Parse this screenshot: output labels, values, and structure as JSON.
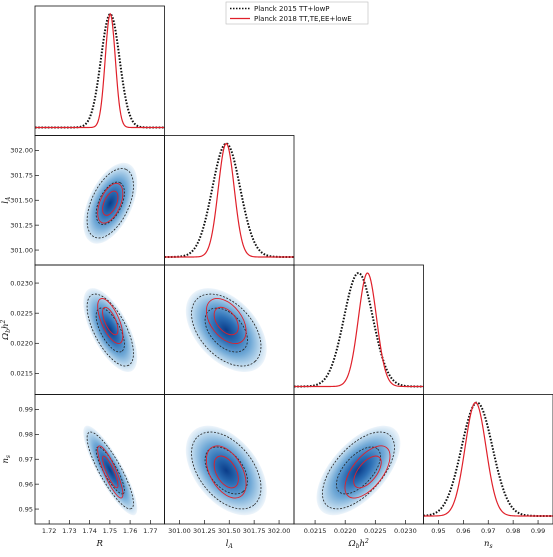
{
  "chart_data": {
    "type": "corner-plot",
    "legend": {
      "placement": "top-center",
      "entries": [
        {
          "label": "Planck 2015 TT+lowP",
          "style": "dotted",
          "color": "#111111"
        },
        {
          "label": "Planck 2018 TT,TE,EE+lowE",
          "style": "solid",
          "color": "#e0202a"
        }
      ]
    },
    "parameters": [
      {
        "key": "R",
        "label": "R",
        "range": [
          1.713,
          1.777
        ],
        "ticks": [
          1.72,
          1.73,
          1.74,
          1.75,
          1.76,
          1.77
        ],
        "tick_labels": [
          "1.72",
          "1.73",
          "1.74",
          "1.75",
          "1.76",
          "1.77"
        ]
      },
      {
        "key": "lA",
        "label": "l",
        "label_sub": "A",
        "range": [
          300.85,
          302.15
        ],
        "ticks": [
          301.0,
          301.25,
          301.5,
          301.75,
          302.0
        ],
        "tick_labels": [
          "301.00",
          "301.25",
          "301.50",
          "301.75",
          "302.00"
        ]
      },
      {
        "key": "obh2",
        "label": "Ω",
        "label_sub": "b",
        "label_rest": "h",
        "label_sup": "2",
        "range": [
          0.02115,
          0.0233
        ],
        "ticks": [
          0.0215,
          0.022,
          0.0225,
          0.023
        ],
        "tick_labels": [
          "0.0215",
          "0.0220",
          "0.0225",
          "0.0230"
        ]
      },
      {
        "key": "ns",
        "label": "n",
        "label_sub": "s",
        "range": [
          0.944,
          0.996
        ],
        "ticks": [
          0.95,
          0.96,
          0.97,
          0.98,
          0.99
        ],
        "tick_labels": [
          "0.95",
          "0.96",
          "0.97",
          "0.98",
          "0.99"
        ]
      }
    ],
    "posteriors": {
      "planck2015": {
        "mean": {
          "R": 1.7502,
          "lA": 301.47,
          "obh2": 0.02222,
          "ns": 0.9655
        },
        "sigma": {
          "R": 0.0046,
          "lA": 0.14,
          "obh2": 0.00024,
          "ns": 0.0062
        },
        "correlation": [
          [
            1.0,
            0.5,
            -0.65,
            -0.85
          ],
          [
            0.5,
            1.0,
            -0.45,
            -0.45
          ],
          [
            -0.65,
            -0.45,
            1.0,
            0.6
          ],
          [
            -0.85,
            -0.45,
            0.6,
            1.0
          ]
        ]
      },
      "planck2018": {
        "mean": {
          "R": 1.7502,
          "lA": 301.47,
          "obh2": 0.02237,
          "ns": 0.9649
        },
        "sigma": {
          "R": 0.0025,
          "lA": 0.08,
          "obh2": 0.00015,
          "ns": 0.0042
        },
        "correlation": [
          [
            1.0,
            0.5,
            -0.65,
            -0.85
          ],
          [
            0.5,
            1.0,
            -0.45,
            -0.45
          ],
          [
            -0.65,
            -0.45,
            1.0,
            0.6
          ],
          [
            -0.85,
            -0.45,
            0.6,
            1.0
          ]
        ]
      }
    },
    "contour_levels": [
      "68%",
      "95%"
    ],
    "grid": false
  }
}
